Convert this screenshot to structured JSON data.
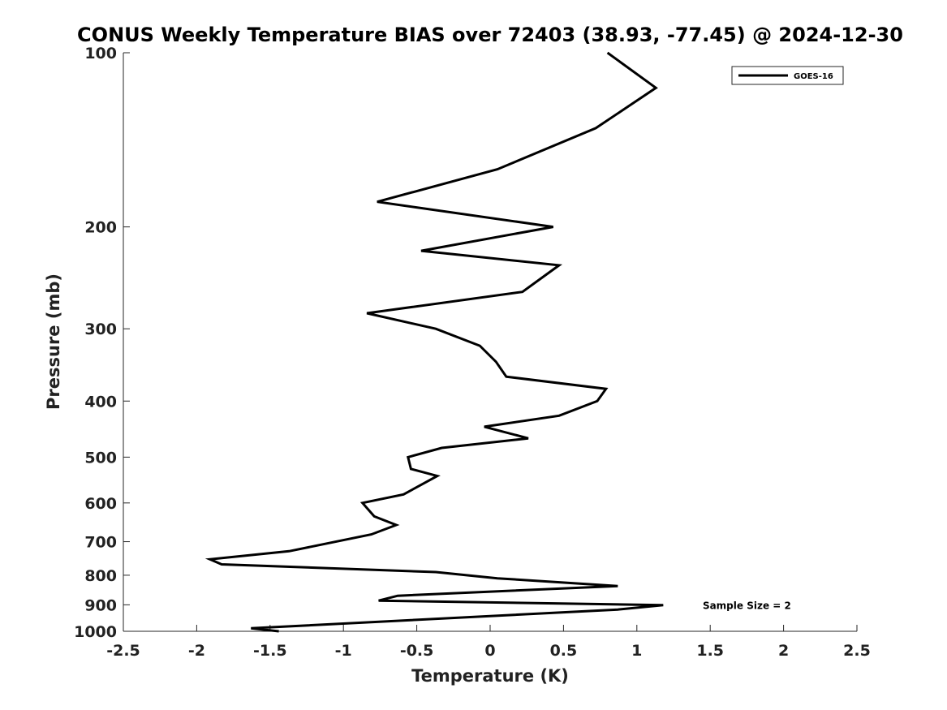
{
  "chart_data": {
    "type": "line",
    "title": "CONUS Weekly Temperature BIAS over 72403 (38.93, -77.45) @ 2024-12-30",
    "xlabel": "Temperature (K)",
    "ylabel": "Pressure (mb)",
    "xlim": [
      -2.5,
      2.5
    ],
    "ylim": [
      1000,
      100
    ],
    "y_scale": "log",
    "y_direction": "reversed",
    "x_ticks": [
      "-2.5",
      "-2",
      "-1.5",
      "-1",
      "-0.5",
      "0",
      "0.5",
      "1",
      "1.5",
      "2",
      "2.5"
    ],
    "y_ticks": [
      {
        "value": 100,
        "label": "100"
      },
      {
        "value": 200,
        "label": "200"
      },
      {
        "value": 300,
        "label": "300"
      },
      {
        "value": 400,
        "label": "400"
      },
      {
        "value": 500,
        "label": "500"
      },
      {
        "value": 600,
        "label": "600"
      },
      {
        "value": 700,
        "label": "700"
      },
      {
        "value": 800,
        "label": "800"
      },
      {
        "value": 900,
        "label": "900"
      },
      {
        "value": 1000,
        "label": "1000"
      }
    ],
    "grid": false,
    "legend_position": "top-right",
    "line_color": "#000000",
    "series": [
      {
        "name": "GOES-16",
        "points": [
          {
            "x": 0.8,
            "y": 100
          },
          {
            "x": 1.13,
            "y": 115
          },
          {
            "x": 0.72,
            "y": 135
          },
          {
            "x": 0.05,
            "y": 159
          },
          {
            "x": -0.77,
            "y": 181
          },
          {
            "x": 0.43,
            "y": 200
          },
          {
            "x": -0.47,
            "y": 220
          },
          {
            "x": 0.47,
            "y": 233
          },
          {
            "x": 0.22,
            "y": 259
          },
          {
            "x": -0.84,
            "y": 282
          },
          {
            "x": -0.37,
            "y": 300
          },
          {
            "x": -0.07,
            "y": 321
          },
          {
            "x": 0.04,
            "y": 342
          },
          {
            "x": 0.11,
            "y": 363
          },
          {
            "x": 0.79,
            "y": 381
          },
          {
            "x": 0.73,
            "y": 400
          },
          {
            "x": 0.47,
            "y": 424
          },
          {
            "x": -0.04,
            "y": 443
          },
          {
            "x": 0.26,
            "y": 464
          },
          {
            "x": -0.33,
            "y": 482
          },
          {
            "x": -0.56,
            "y": 500
          },
          {
            "x": -0.54,
            "y": 524
          },
          {
            "x": -0.36,
            "y": 539
          },
          {
            "x": -0.59,
            "y": 580
          },
          {
            "x": -0.87,
            "y": 600
          },
          {
            "x": -0.79,
            "y": 633
          },
          {
            "x": -0.64,
            "y": 655
          },
          {
            "x": -0.81,
            "y": 680
          },
          {
            "x": -1.37,
            "y": 727
          },
          {
            "x": -1.91,
            "y": 751
          },
          {
            "x": -1.83,
            "y": 766
          },
          {
            "x": -0.37,
            "y": 790
          },
          {
            "x": 0.05,
            "y": 810
          },
          {
            "x": 0.87,
            "y": 835
          },
          {
            "x": -0.63,
            "y": 868
          },
          {
            "x": -0.76,
            "y": 885
          },
          {
            "x": 1.18,
            "y": 901
          },
          {
            "x": 0.87,
            "y": 917
          },
          {
            "x": -1.63,
            "y": 988
          },
          {
            "x": -1.44,
            "y": 1000
          }
        ]
      }
    ],
    "annotations": [
      {
        "text": "Sample Size = 2",
        "x": 1.75,
        "y": 901
      }
    ]
  }
}
